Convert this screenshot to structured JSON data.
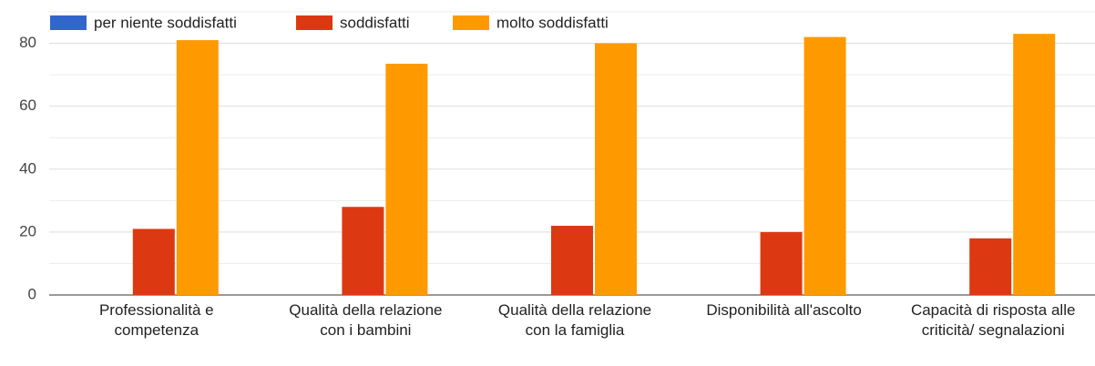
{
  "chart_data": {
    "type": "bar",
    "categories": [
      "Professionalità e competenza",
      "Qualità della relazione con i bambini",
      "Qualità della relazione con la famiglia",
      "Disponibilità all'ascolto",
      "Capacità di risposta alle criticità/ segnalazioni"
    ],
    "series": [
      {
        "name": "per niente soddisfatti",
        "color": "#3366cc",
        "values": [
          0,
          0,
          0,
          0,
          0
        ]
      },
      {
        "name": "soddisfatti",
        "color": "#dc3912",
        "values": [
          21,
          28,
          22,
          20,
          18
        ]
      },
      {
        "name": "molto soddisfatti",
        "color": "#ff9900",
        "values": [
          81,
          73.5,
          80,
          82,
          83
        ]
      }
    ],
    "ylim": [
      0,
      90
    ],
    "yticks": [
      0,
      20,
      40,
      60,
      80
    ],
    "minor_yticks": [
      10,
      30,
      50,
      70,
      90
    ],
    "grid": true,
    "legend": "top-left"
  }
}
